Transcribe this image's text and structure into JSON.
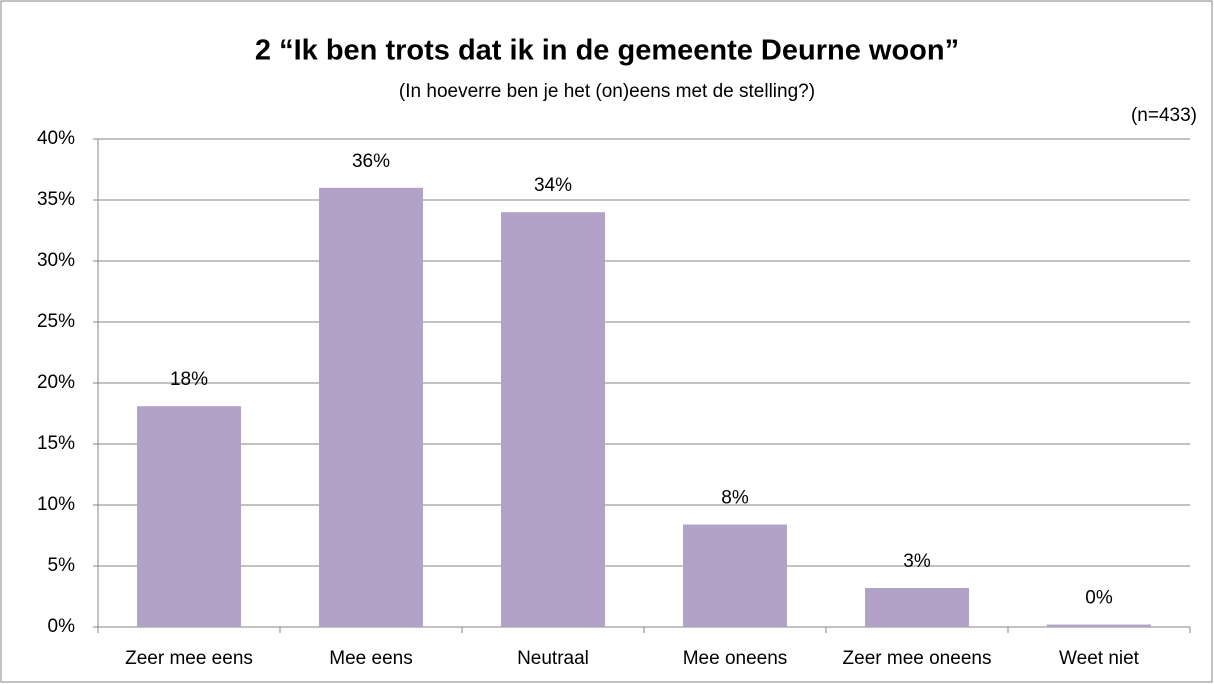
{
  "chart_data": {
    "type": "bar",
    "title": "2 “Ik ben trots dat ik in de gemeente Deurne woon”",
    "subtitle": "(In hoeverre ben je het (on)eens met de stelling?)",
    "annotation": "(n=433)",
    "categories": [
      "Zeer mee eens",
      "Mee eens",
      "Neutraal",
      "Mee oneens",
      "Zeer mee oneens",
      "Weet niet"
    ],
    "values": [
      18.1,
      36,
      34,
      8.4,
      3.2,
      0.2
    ],
    "value_labels": [
      "18%",
      "36%",
      "34%",
      "8%",
      "3%",
      "0%"
    ],
    "color": "#b3a2c7",
    "ylim": [
      0,
      40
    ],
    "yticks": [
      {
        "value": 0,
        "label": "0%"
      },
      {
        "value": 5,
        "label": "5%"
      },
      {
        "value": 10,
        "label": "10%"
      },
      {
        "value": 15,
        "label": "15%"
      },
      {
        "value": 20,
        "label": "20%"
      },
      {
        "value": 25,
        "label": "25%"
      },
      {
        "value": 30,
        "label": "30%"
      },
      {
        "value": 35,
        "label": "35%"
      },
      {
        "value": 40,
        "label": "40%"
      }
    ],
    "grid": true
  }
}
